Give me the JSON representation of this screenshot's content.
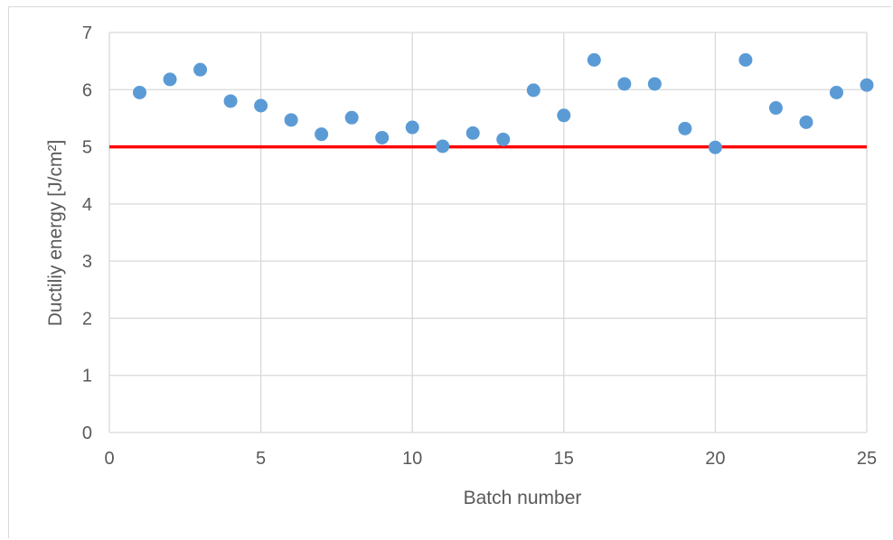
{
  "chart_data": {
    "type": "scatter",
    "xlabel": "Batch number",
    "ylabel": "Ductiliy energy [J/cm²]",
    "xlim": [
      0,
      25
    ],
    "ylim": [
      0,
      7
    ],
    "xticks": [
      0,
      5,
      10,
      15,
      20,
      25
    ],
    "yticks": [
      0,
      1,
      2,
      3,
      4,
      5,
      6,
      7
    ],
    "grid": true,
    "series": [
      {
        "x": [
          1,
          2,
          3,
          4,
          5,
          6,
          7,
          8,
          9,
          10,
          11,
          12,
          13,
          14,
          15,
          16,
          17,
          18,
          19,
          20,
          21,
          22,
          23,
          24,
          25
        ],
        "y": [
          5.95,
          6.18,
          6.35,
          5.8,
          5.72,
          5.47,
          5.22,
          5.51,
          5.16,
          5.34,
          5.01,
          5.24,
          5.13,
          5.99,
          5.55,
          6.52,
          6.1,
          6.1,
          5.32,
          4.99,
          6.52,
          5.68,
          5.43,
          5.95,
          6.08
        ],
        "color": "#5b9bd5"
      }
    ],
    "reference_line": {
      "y": 5,
      "color": "#ff0000"
    }
  }
}
